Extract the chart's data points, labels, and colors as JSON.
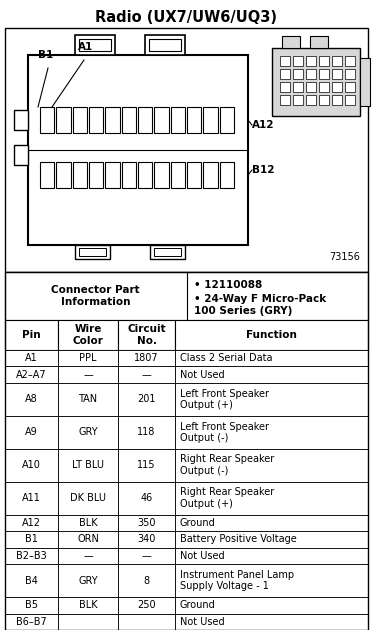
{
  "title": "Radio (UX7/UW6/UQ3)",
  "diagram_label": "73156",
  "connector_info_label": "Connector Part\nInformation",
  "connector_info_bullets": [
    "12110088",
    "24-Way F Micro-Pack\n100 Series (GRY)"
  ],
  "table_headers": [
    "Pin",
    "Wire\nColor",
    "Circuit\nNo.",
    "Function"
  ],
  "table_rows": [
    [
      "A1",
      "PPL",
      "1807",
      "Class 2 Serial Data"
    ],
    [
      "A2–A7",
      "—",
      "—",
      "Not Used"
    ],
    [
      "A8",
      "TAN",
      "201",
      "Left Front Speaker\nOutput (+)"
    ],
    [
      "A9",
      "GRY",
      "118",
      "Left Front Speaker\nOutput (-)"
    ],
    [
      "A10",
      "LT BLU",
      "115",
      "Right Rear Speaker\nOutput (-)"
    ],
    [
      "A11",
      "DK BLU",
      "46",
      "Right Rear Speaker\nOutput (+)"
    ],
    [
      "A12",
      "BLK",
      "350",
      "Ground"
    ],
    [
      "B1",
      "ORN",
      "340",
      "Battery Positive Voltage"
    ],
    [
      "B2–B3",
      "—",
      "—",
      "Not Used"
    ],
    [
      "B4",
      "GRY",
      "8",
      "Instrument Panel Lamp\nSupply Voltage - 1"
    ],
    [
      "B5",
      "BLK",
      "250",
      "Ground"
    ],
    [
      "B6–B7",
      "",
      "",
      "Not Used"
    ]
  ],
  "bg_color": "#ffffff",
  "text_color": "#000000"
}
